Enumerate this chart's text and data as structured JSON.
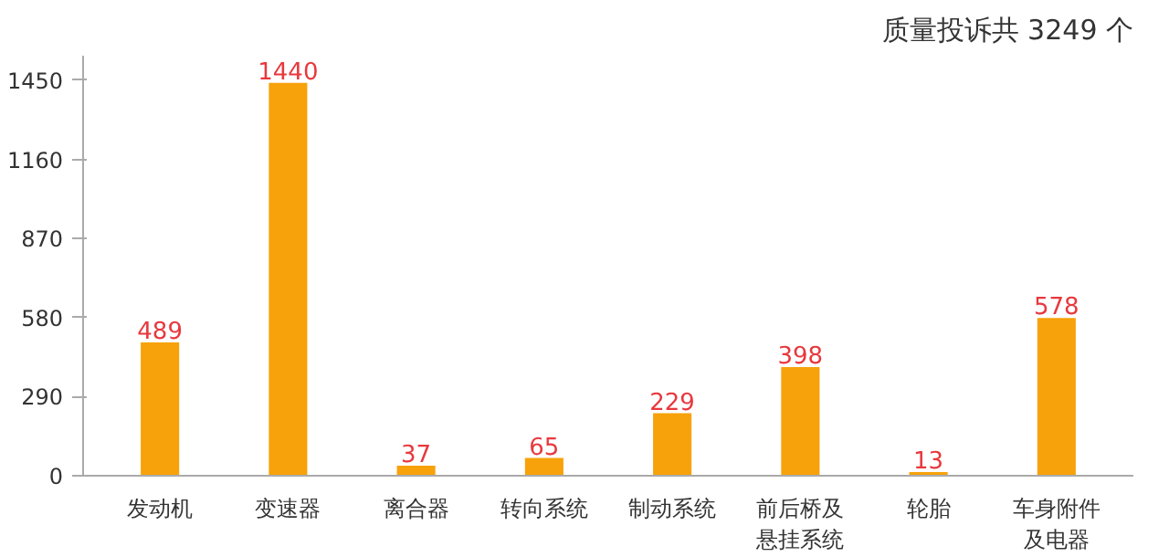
{
  "chart_data": {
    "type": "bar",
    "title": "质量投诉共 3249 个",
    "categories": [
      "发动机",
      "变速器",
      "离合器",
      "转向系统",
      "制动系统",
      "前后桥及悬挂系统",
      "轮胎",
      "车身附件及电器"
    ],
    "values": [
      489,
      1440,
      37,
      65,
      229,
      398,
      13,
      578
    ],
    "color": "#f7a20a",
    "data_labels": true,
    "ylim": [
      0,
      1540
    ],
    "yticks": [
      0,
      290,
      580,
      870,
      1160,
      1450
    ],
    "grid": false
  }
}
